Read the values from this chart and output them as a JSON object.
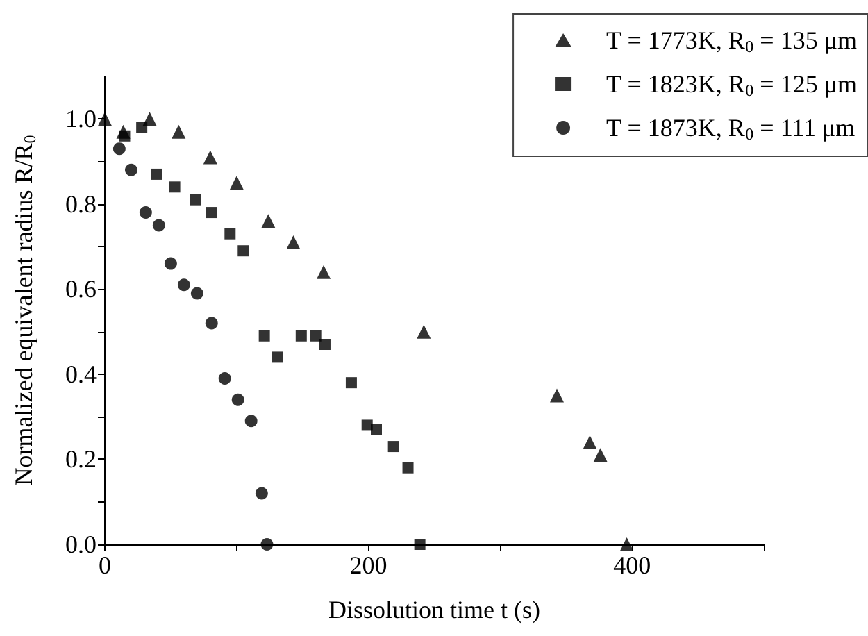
{
  "chart_data": {
    "type": "scatter",
    "xlabel": "Dissolution time t (s)",
    "ylabel": "Normalized equivalent radius R/R$_{0}$",
    "xlim": [
      0,
      500
    ],
    "xticks": [
      0,
      {
        "value": 100,
        "label": null
      },
      200,
      {
        "value": 300,
        "label": null
      },
      400,
      {
        "value": 500,
        "label": null
      }
    ],
    "ylim": [
      0,
      1.1
    ],
    "yticks": [
      {
        "value": 0,
        "label": "0.0"
      },
      {
        "value": 0.1,
        "label": null
      },
      0.2,
      {
        "value": 0.3,
        "label": null
      },
      0.4,
      {
        "value": 0.5,
        "label": null
      },
      0.6,
      {
        "value": 0.7,
        "label": null
      },
      0.8,
      {
        "value": 0.9,
        "label": null
      },
      {
        "value": 1,
        "label": "1.0"
      }
    ],
    "grid": false,
    "legend": "top right",
    "series": [
      {
        "name": "T = 1773K, R$_{0}$ = 135 μm",
        "color": "#000000",
        "marker": "triangle",
        "x": [
          0,
          14,
          34,
          56,
          80,
          100,
          124,
          143,
          166,
          242,
          343,
          368,
          376,
          396
        ],
        "values": [
          1,
          0.97,
          1,
          0.97,
          0.91,
          0.85,
          0.76,
          0.71,
          0.64,
          0.5,
          0.35,
          0.24,
          0.21,
          0
        ]
      },
      {
        "name": "T = 1823K, R$_{0}$ = 125 μm",
        "color": "#000000",
        "marker": "square",
        "x": [
          15,
          28,
          39,
          53,
          69,
          81,
          95,
          105,
          121,
          131,
          149,
          160,
          167,
          187,
          199,
          206,
          219,
          230,
          239
        ],
        "values": [
          0.96,
          0.98,
          0.87,
          0.84,
          0.81,
          0.78,
          0.73,
          0.69,
          0.49,
          0.44,
          0.49,
          0.49,
          0.47,
          0.38,
          0.28,
          0.27,
          0.23,
          0.18,
          0
        ]
      },
      {
        "name": "T = 1873K, R$_{0}$ = 111 μm",
        "color": "#000000",
        "marker": "circle",
        "x": [
          11,
          20,
          31,
          41,
          50,
          60,
          70,
          81,
          91,
          101,
          111,
          119,
          123
        ],
        "values": [
          0.93,
          0.88,
          0.78,
          0.75,
          0.66,
          0.61,
          0.59,
          0.52,
          0.39,
          0.34,
          0.29,
          0.12,
          0
        ]
      }
    ]
  }
}
